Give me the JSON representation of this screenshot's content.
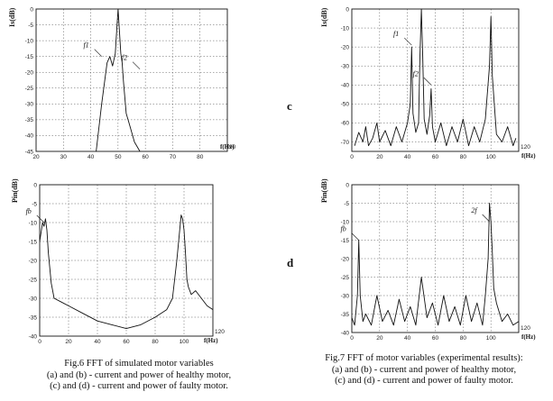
{
  "side_labels": {
    "c": "c",
    "d": "d"
  },
  "captions": {
    "fig6": [
      "Fig.6  FFT of simulated motor variables",
      "(a) and (b) - current and power of healthy motor,",
      "(c) and (d) - current and power of faulty motor."
    ],
    "fig7": [
      "Fig.7  FFT of motor variables (experimental results):",
      "(a) and (b) - current and power of healthy motor,",
      "(c) and (d) - current and power  of  faulty motor."
    ]
  },
  "chart_data": [
    {
      "type": "line",
      "id": "fig6-c",
      "ylabel": "Is(dB)",
      "xlabel": "f(Hz)",
      "xlim": [
        20,
        90
      ],
      "ylim": [
        -45,
        0
      ],
      "xticks": [
        20,
        30,
        40,
        50,
        60,
        70,
        80,
        90
      ],
      "yticks": [
        0,
        -5,
        -10,
        -15,
        -20,
        -25,
        -30,
        -35,
        -40,
        -45
      ],
      "annotations": [
        {
          "text": "f1",
          "x": 44,
          "y": -15
        },
        {
          "text": "f2",
          "x": 58,
          "y": -19
        }
      ],
      "series": [
        {
          "x": [
            42,
            44,
            46,
            47,
            48,
            49,
            49.5,
            50,
            50.5,
            51,
            51.5,
            52,
            53,
            54,
            55,
            56,
            58
          ],
          "y": [
            -45,
            -30,
            -17,
            -15,
            -18,
            -14,
            -7,
            0,
            -7,
            -14,
            -17,
            -23,
            -33,
            -36,
            -39,
            -42,
            -45
          ]
        }
      ]
    },
    {
      "type": "line",
      "id": "fig6-d",
      "ylabel": "Pin(dB)",
      "xlabel": "f(Hz)",
      "xlim": [
        0,
        120
      ],
      "ylim": [
        -40,
        0
      ],
      "xticks": [
        0,
        20,
        40,
        60,
        80,
        100,
        120
      ],
      "yticks": [
        0,
        -5,
        -10,
        -15,
        -20,
        -25,
        -30,
        -35,
        -40
      ],
      "annotations": [
        {
          "text": "fb",
          "x": 3,
          "y": -10
        }
      ],
      "series": [
        {
          "x": [
            0,
            2,
            3,
            4,
            5,
            6,
            8,
            10,
            15,
            20,
            30,
            40,
            50,
            60,
            70,
            80,
            88,
            92,
            95,
            97,
            98,
            99,
            100,
            101,
            102,
            103,
            105,
            108,
            112,
            116,
            120
          ],
          "y": [
            -15,
            -10,
            -11,
            -9,
            -12,
            -18,
            -26,
            -30,
            -31,
            -32,
            -34,
            -36,
            -37,
            -38,
            -37,
            -35,
            -33,
            -30,
            -20,
            -12,
            -8,
            -9,
            -12,
            -18,
            -25,
            -27,
            -29,
            -28,
            -30,
            -32,
            -33
          ]
        }
      ]
    },
    {
      "type": "line",
      "id": "fig7-c",
      "ylabel": "Is(dB)",
      "xlabel": "f(Hz)",
      "xlim": [
        0,
        120
      ],
      "ylim": [
        -75,
        0
      ],
      "xticks": [
        0,
        20,
        40,
        60,
        80,
        100,
        120
      ],
      "yticks": [
        0,
        -10,
        -20,
        -30,
        -40,
        -50,
        -60,
        -70
      ],
      "annotations": [
        {
          "text": "f1",
          "x": 43,
          "y": -19
        },
        {
          "text": "f2",
          "x": 57,
          "y": -40
        }
      ],
      "series": [
        {
          "x": [
            2,
            5,
            8,
            10,
            12,
            15,
            18,
            20,
            24,
            28,
            32,
            36,
            40,
            42,
            43,
            44,
            46,
            48,
            49,
            50,
            51,
            52,
            54,
            56,
            57,
            58,
            60,
            64,
            68,
            72,
            76,
            80,
            84,
            88,
            92,
            96,
            99,
            100,
            101,
            104,
            108,
            112,
            116,
            118
          ],
          "y": [
            -72,
            -65,
            -70,
            -62,
            -72,
            -68,
            -60,
            -70,
            -64,
            -72,
            -62,
            -70,
            -60,
            -50,
            -20,
            -55,
            -65,
            -60,
            -25,
            0,
            -25,
            -58,
            -66,
            -56,
            -42,
            -62,
            -70,
            -60,
            -72,
            -62,
            -70,
            -58,
            -72,
            -62,
            -70,
            -58,
            -30,
            -4,
            -35,
            -66,
            -70,
            -62,
            -72,
            -68
          ]
        }
      ]
    },
    {
      "type": "line",
      "id": "fig7-d",
      "ylabel": "Pin(dB)",
      "xlabel": "f(Hz)",
      "xlim": [
        0,
        120
      ],
      "ylim": [
        -40,
        0
      ],
      "xticks": [
        0,
        20,
        40,
        60,
        80,
        100,
        120
      ],
      "yticks": [
        0,
        -5,
        -10,
        -15,
        -20,
        -25,
        -30,
        -35,
        -40
      ],
      "annotations": [
        {
          "text": "fb",
          "x": 5,
          "y": -15
        },
        {
          "text": "2f",
          "x": 99,
          "y": -10
        }
      ],
      "series": [
        {
          "x": [
            0,
            2,
            4,
            5,
            6,
            8,
            10,
            14,
            18,
            22,
            26,
            30,
            34,
            38,
            42,
            46,
            50,
            54,
            58,
            62,
            66,
            70,
            74,
            78,
            82,
            86,
            90,
            94,
            96,
            98,
            99,
            100,
            101,
            102,
            104,
            108,
            112,
            116,
            120
          ],
          "y": [
            -36,
            -38,
            -30,
            -15,
            -30,
            -37,
            -35,
            -38,
            -30,
            -37,
            -34,
            -38,
            -31,
            -37,
            -33,
            -38,
            -25,
            -36,
            -32,
            -38,
            -30,
            -37,
            -33,
            -38,
            -30,
            -37,
            -32,
            -38,
            -30,
            -20,
            -5,
            -10,
            -18,
            -28,
            -32,
            -37,
            -35,
            -38,
            -37
          ]
        }
      ]
    }
  ]
}
